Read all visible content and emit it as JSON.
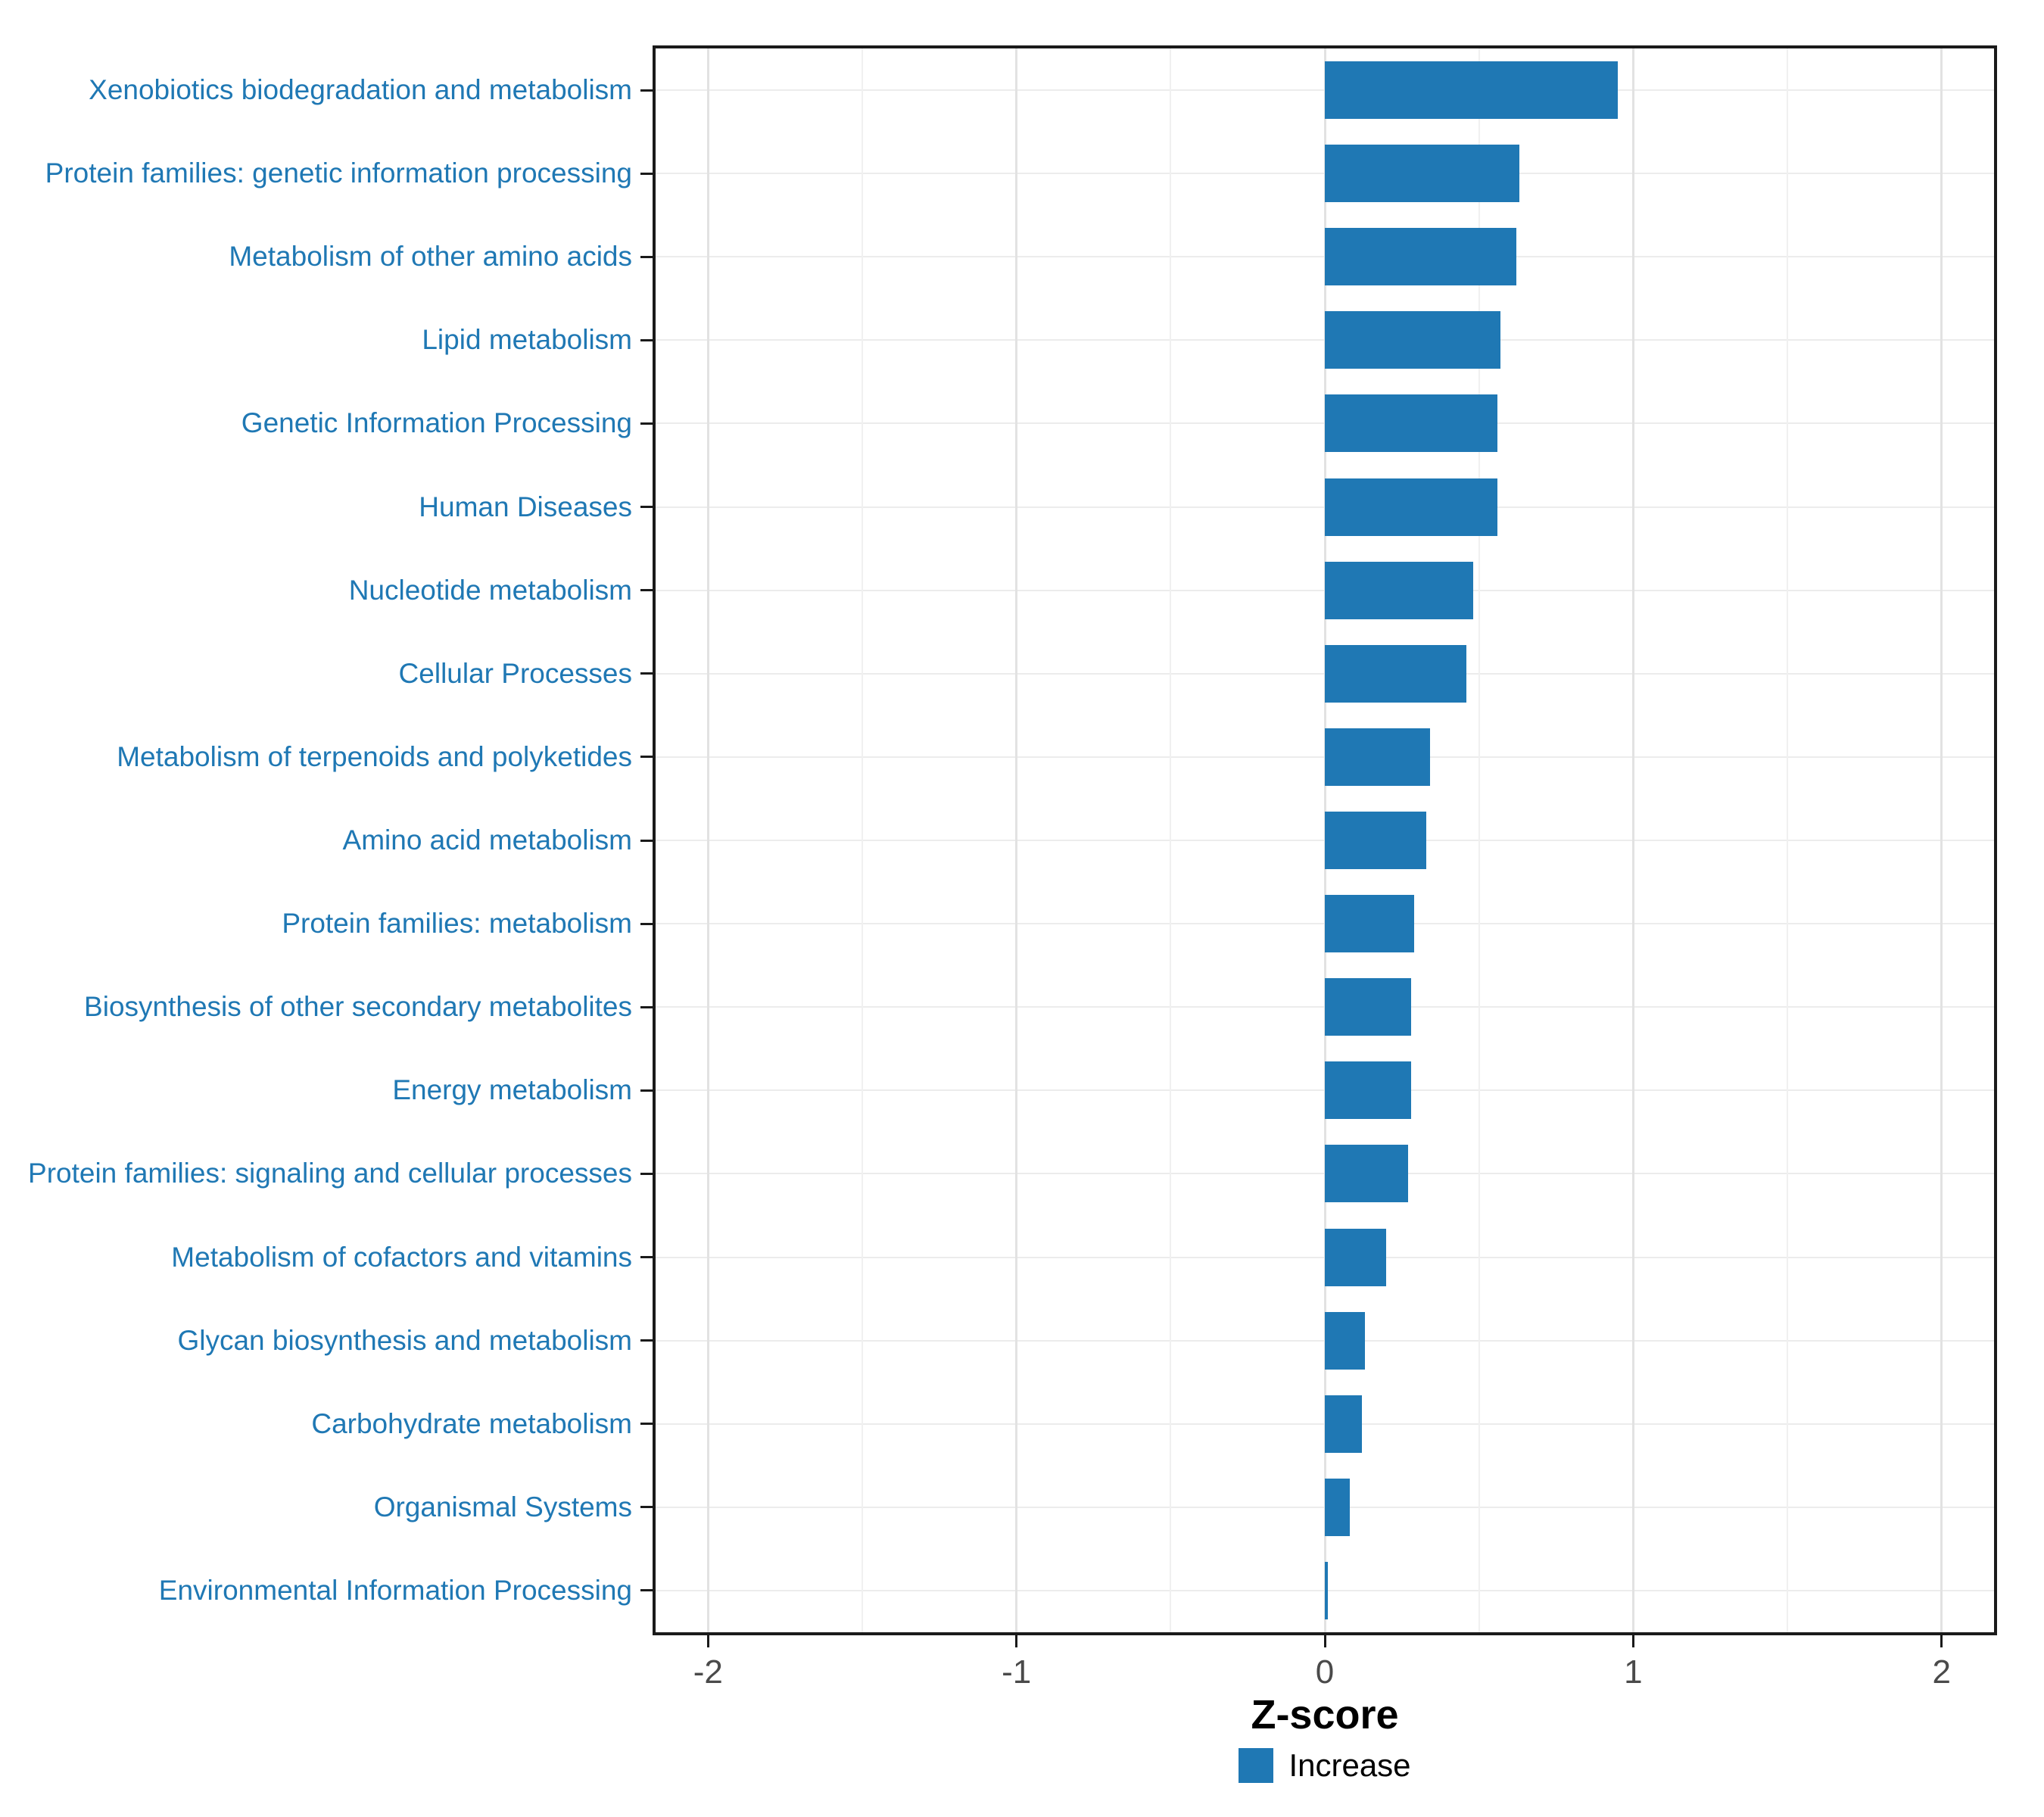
{
  "chart_data": {
    "type": "bar",
    "orientation": "horizontal",
    "title": "",
    "xlabel": "Z-score",
    "ylabel": "",
    "xlim": [
      -2.17,
      2.17
    ],
    "x_ticks": [
      -2,
      -1,
      0,
      1,
      2
    ],
    "x_tick_labels": [
      "-2",
      "-1",
      "0",
      "1",
      "2"
    ],
    "x_minor_ticks": [
      -1.5,
      -0.5,
      0.5,
      1.5
    ],
    "grid": true,
    "legend_position": "bottom",
    "legend_entries": [
      {
        "label": "Increase",
        "color": "#1F78B4"
      }
    ],
    "bar_color": "#1F78B4",
    "axis_label_color": "#1F78B4",
    "panel_border_color": "#1a1a1a",
    "categories": [
      "Xenobiotics biodegradation and metabolism",
      "Protein families: genetic information processing",
      "Metabolism of other amino acids",
      "Lipid metabolism",
      "Genetic Information Processing",
      "Human Diseases",
      "Nucleotide metabolism",
      "Cellular Processes",
      "Metabolism of terpenoids and polyketides",
      "Amino acid metabolism",
      "Protein families: metabolism",
      "Biosynthesis of other secondary metabolites",
      "Energy metabolism",
      "Protein families: signaling and cellular processes",
      "Metabolism of cofactors and vitamins",
      "Glycan biosynthesis and metabolism",
      "Carbohydrate metabolism",
      "Organismal Systems",
      "Environmental Information Processing"
    ],
    "values": [
      0.95,
      0.63,
      0.62,
      0.57,
      0.56,
      0.56,
      0.48,
      0.46,
      0.34,
      0.33,
      0.29,
      0.28,
      0.28,
      0.27,
      0.2,
      0.13,
      0.12,
      0.08,
      0.01
    ]
  }
}
